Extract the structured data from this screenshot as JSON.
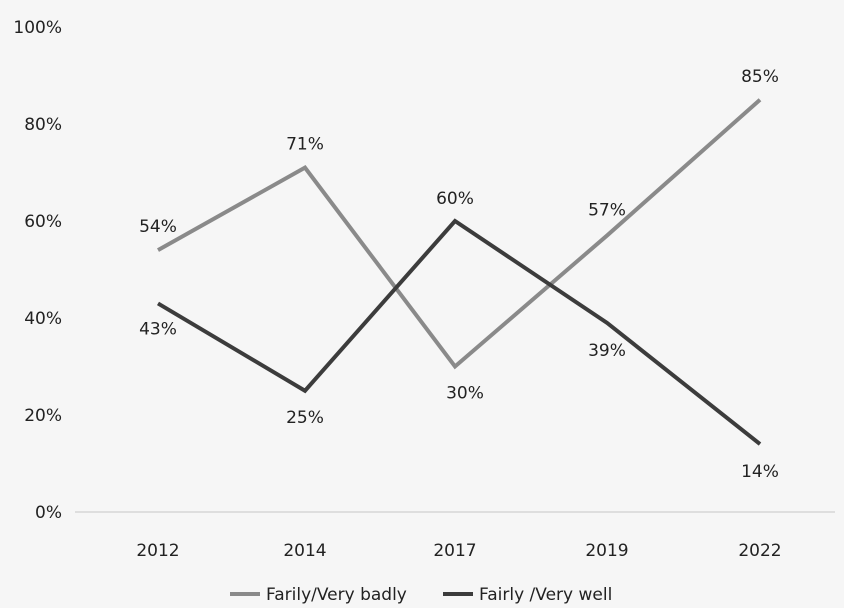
{
  "chart_data": {
    "type": "line",
    "categories": [
      "2012",
      "2014",
      "2017",
      "2019",
      "2022"
    ],
    "ylim": [
      0,
      100
    ],
    "yticks": [
      "0%",
      "20%",
      "40%",
      "60%",
      "80%",
      "100%"
    ],
    "grid": false,
    "legend_position": "bottom",
    "series": [
      {
        "name": "Farily/Very badly",
        "values": [
          54,
          71,
          30,
          57,
          85
        ],
        "labels": [
          "54%",
          "71%",
          "30%",
          "57%",
          "85%"
        ],
        "color": "#8a8a8a"
      },
      {
        "name": "Fairly /Very well",
        "values": [
          43,
          25,
          60,
          39,
          14
        ],
        "labels": [
          "43%",
          "25%",
          "60%",
          "39%",
          "14%"
        ],
        "color": "#3c3c3c"
      }
    ]
  }
}
